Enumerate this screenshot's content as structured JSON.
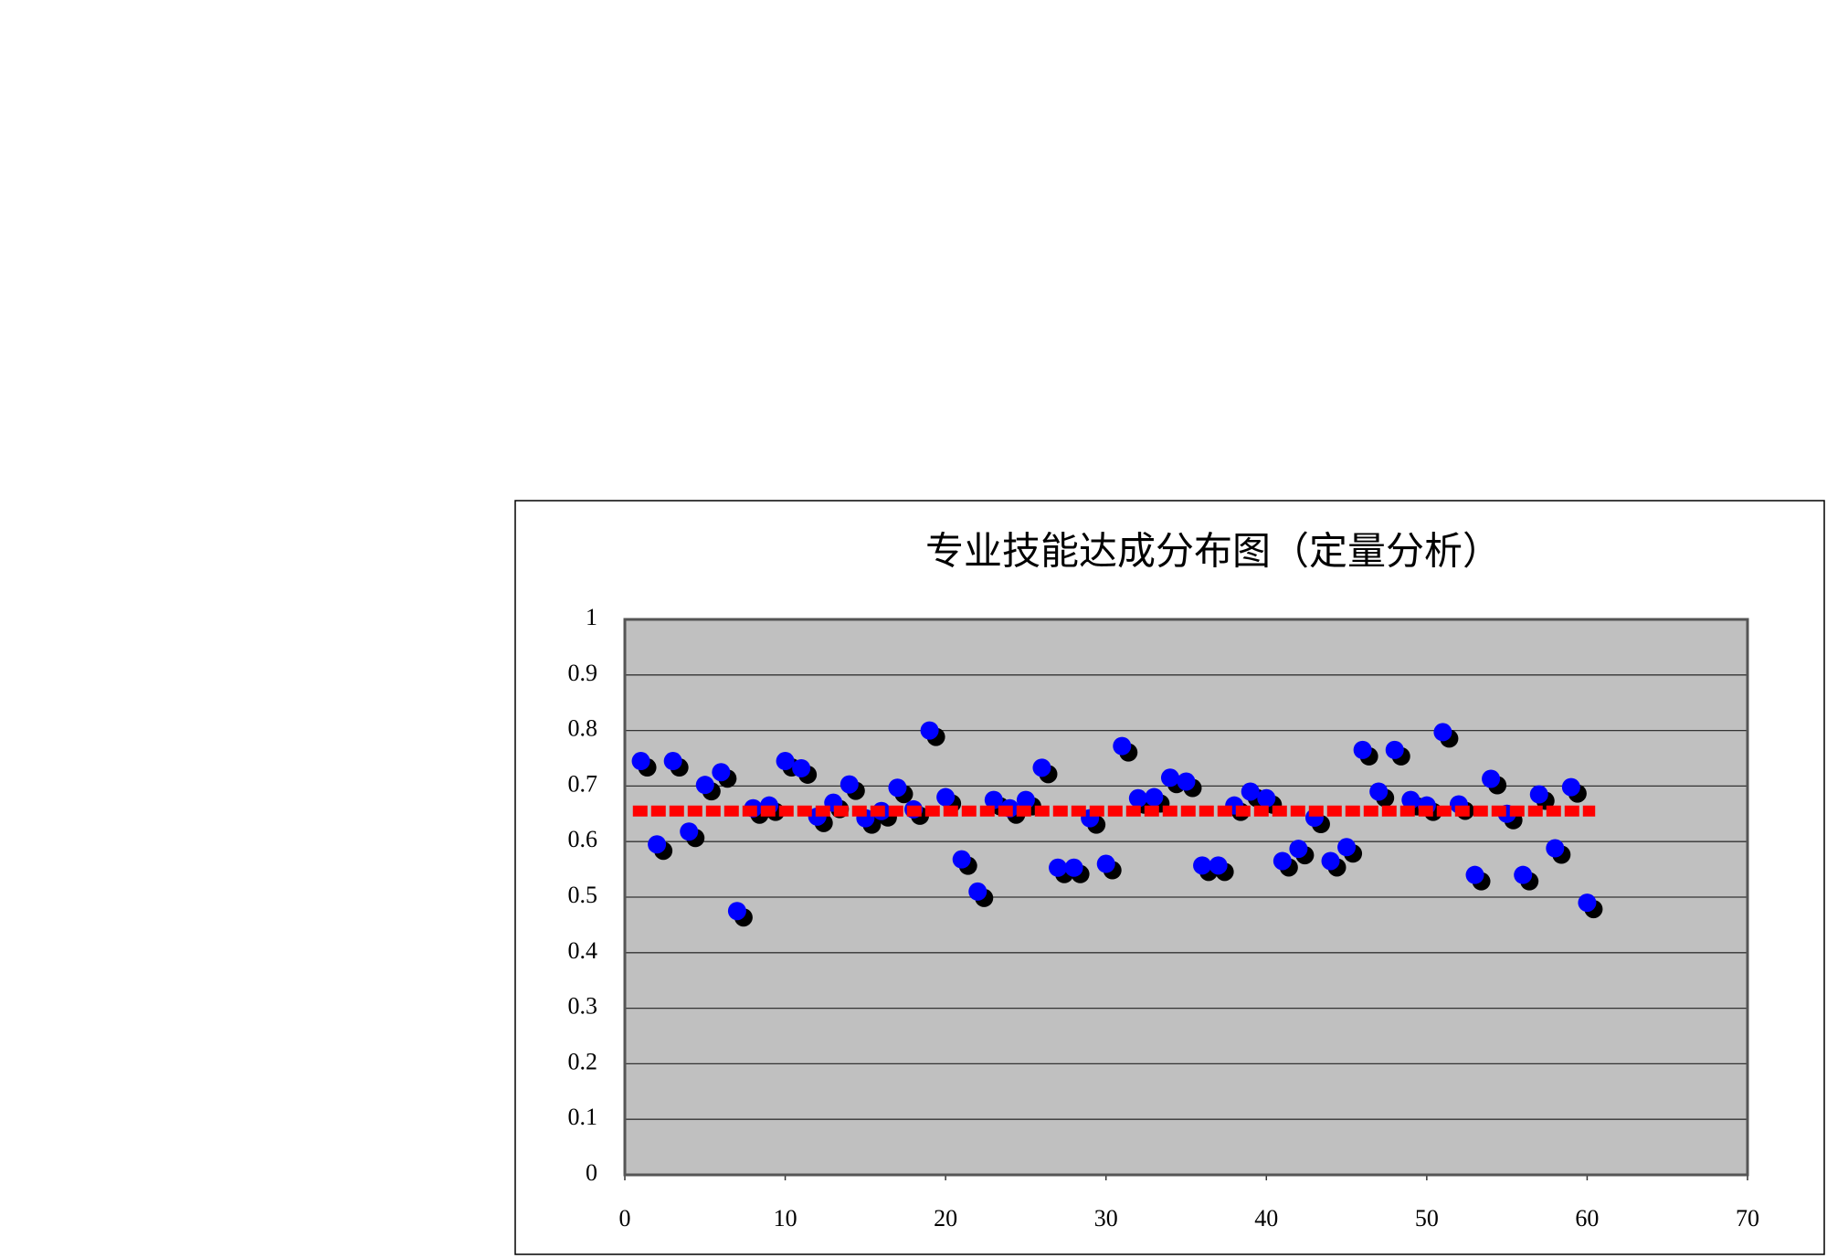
{
  "chart_data": {
    "type": "scatter",
    "title": "专业技能达成分布图（定量分析）",
    "xlim": [
      0,
      70
    ],
    "xticks": [
      0,
      10,
      20,
      30,
      40,
      50,
      60,
      70
    ],
    "ylim": [
      0,
      1
    ],
    "yticks": [
      0,
      0.1,
      0.2,
      0.3,
      0.4,
      0.5,
      0.6,
      0.7,
      0.8,
      0.9,
      1
    ],
    "grid": true,
    "plot_background": "#c0c0c0",
    "series": [
      {
        "color": "#0000ff",
        "shadow_color": "#000000",
        "x": [
          1,
          2,
          3,
          4,
          5,
          6,
          7,
          8,
          9,
          10,
          11,
          12,
          13,
          14,
          15,
          16,
          17,
          18,
          19,
          20,
          21,
          22,
          23,
          24,
          25,
          26,
          27,
          28,
          29,
          30,
          31,
          32,
          33,
          34,
          35,
          36,
          37,
          38,
          39,
          40,
          41,
          42,
          43,
          44,
          45,
          46,
          47,
          48,
          49,
          50,
          51,
          52,
          53,
          54,
          55,
          56,
          57,
          58,
          59,
          60
        ],
        "values": [
          0.745,
          0.595,
          0.745,
          0.618,
          0.702,
          0.725,
          0.475,
          0.66,
          0.665,
          0.745,
          0.732,
          0.645,
          0.67,
          0.703,
          0.642,
          0.655,
          0.697,
          0.658,
          0.8,
          0.68,
          0.568,
          0.51,
          0.675,
          0.66,
          0.675,
          0.733,
          0.553,
          0.553,
          0.642,
          0.56,
          0.772,
          0.678,
          0.68,
          0.715,
          0.708,
          0.557,
          0.557,
          0.665,
          0.69,
          0.678,
          0.565,
          0.587,
          0.643,
          0.565,
          0.59,
          0.765,
          0.69,
          0.765,
          0.675,
          0.665,
          0.797,
          0.667,
          0.54,
          0.713,
          0.65,
          0.54,
          0.685,
          0.588,
          0.698,
          0.49
        ]
      },
      {
        "type": "line",
        "color": "#ff0000",
        "dashed": true,
        "x": [
          0.5,
          60.5
        ],
        "values": [
          0.655,
          0.655
        ]
      }
    ]
  }
}
